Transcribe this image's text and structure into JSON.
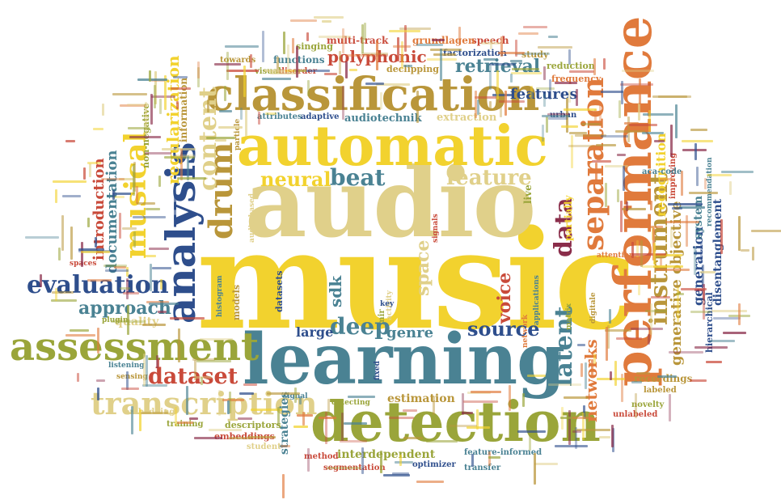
{
  "palette": {
    "yellow": "#F2D22E",
    "sand": "#E0D08A",
    "teal": "#4A8293",
    "olive": "#9AA53A",
    "blue": "#2E4E8C",
    "orange": "#E07A3C",
    "ochre": "#B9963A",
    "red": "#C94A3A",
    "maroon": "#8A2D4A"
  },
  "words": {
    "music": "music",
    "audio": "audio",
    "automatic": "automatic",
    "learning": "learning",
    "detection": "detection",
    "classification": "classification",
    "performance": "performance",
    "assessment": "assessment",
    "analysis": "analysis",
    "transcription": "transcription",
    "separation": "separation",
    "instrument": "instrument",
    "evaluation": "evaluation",
    "dataset": "dataset",
    "musical": "musical",
    "drum": "drum",
    "content": "content",
    "latent": "latent",
    "deep": "deep",
    "neural": "neural",
    "beat": "beat",
    "feature": "feature",
    "features": "features",
    "retrieval": "retrieval",
    "polyphonic": "polyphonic",
    "source": "source",
    "approach": "approach",
    "introduction": "introduction",
    "documentation": "documentation",
    "regularization": "regularization",
    "networks": "networks",
    "data": "data",
    "generative_objective": "generative objective",
    "recognition": "recognition",
    "generation": "generation",
    "system": "system",
    "disentanglement": "disentanglement",
    "voice": "voice",
    "genre": "genre",
    "large": "large",
    "space": "space",
    "sdk": "sdk",
    "quality": "quality",
    "interdependent": "interdependent",
    "estimation": "estimation",
    "extraction": "extraction",
    "audiotechnik": "audiotechnik",
    "recordings": "recordings",
    "embeddings": "embeddings",
    "segmentation": "segmentation",
    "multi_track": "multi-track",
    "singing": "singing",
    "speech": "speech",
    "factorization": "factorization",
    "functions": "functions",
    "towards": "towards",
    "declipping": "declipping",
    "grundlagen": "grundlagen",
    "reduction": "reduction",
    "frequency": "frequency",
    "study": "study",
    "urban": "urban",
    "information": "information",
    "visual": "visual",
    "disorder": "disorder",
    "attributes": "attributes",
    "adaptive": "adaptive",
    "non_negative": "non-negative",
    "aca_code": "aca-code",
    "improving": "improving",
    "recommendation": "recommendation",
    "partially": "partially",
    "live": "live",
    "hierarchical": "hierarchical",
    "novelty": "novelty",
    "labeled": "labeled",
    "unlabeled": "unlabeled",
    "descriptors": "descriptors",
    "training": "training",
    "strategies": "strategies",
    "student": "student",
    "method": "method",
    "optimizer": "optimizer",
    "transfer": "transfer",
    "feature_informed": "feature-informed",
    "detecting": "detecting",
    "signal": "signal",
    "embedding": "embedding",
    "listening": "listening",
    "histogram": "histogram",
    "models": "models",
    "datasets": "datasets",
    "mir": "mir",
    "particle": "particle",
    "audio_based": "audio-based",
    "matrix": "matrix",
    "applications": "applications",
    "network": "network",
    "spaces": "spaces",
    "sensing": "sensing",
    "plugin": "plugin",
    "key": "key",
    "activity": "activity",
    "signals": "signals",
    "fixed": "fixed",
    "attention": "attention",
    "digitale": "digitale"
  }
}
